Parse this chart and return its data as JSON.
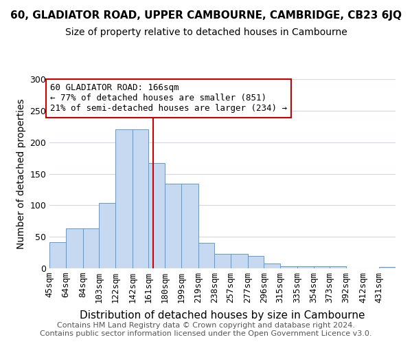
{
  "title1": "60, GLADIATOR ROAD, UPPER CAMBOURNE, CAMBRIDGE, CB23 6JQ",
  "title2": "Size of property relative to detached houses in Cambourne",
  "xlabel": "Distribution of detached houses by size in Cambourne",
  "ylabel": "Number of detached properties",
  "bin_labels": [
    "45sqm",
    "64sqm",
    "84sqm",
    "103sqm",
    "122sqm",
    "142sqm",
    "161sqm",
    "180sqm",
    "199sqm",
    "219sqm",
    "238sqm",
    "257sqm",
    "277sqm",
    "296sqm",
    "315sqm",
    "335sqm",
    "354sqm",
    "373sqm",
    "392sqm",
    "412sqm",
    "431sqm"
  ],
  "bin_edges": [
    45,
    64,
    84,
    103,
    122,
    142,
    161,
    180,
    199,
    219,
    238,
    257,
    277,
    296,
    315,
    335,
    354,
    373,
    392,
    412,
    431,
    450
  ],
  "values": [
    42,
    63,
    63,
    104,
    220,
    220,
    167,
    134,
    134,
    40,
    23,
    23,
    20,
    8,
    3,
    3,
    3,
    3,
    0,
    0,
    2
  ],
  "bar_color": "#c6d9f1",
  "bar_edgecolor": "#5b9bd5",
  "vline_x": 166,
  "vline_color": "#cc0000",
  "annotation_text": "60 GLADIATOR ROAD: 166sqm\n← 77% of detached houses are smaller (851)\n21% of semi-detached houses are larger (234) →",
  "annotation_box_color": "#ffffff",
  "annotation_box_edgecolor": "#cc0000",
  "ylim": [
    0,
    300
  ],
  "yticks": [
    0,
    50,
    100,
    150,
    200,
    250,
    300
  ],
  "footer_text": "Contains HM Land Registry data © Crown copyright and database right 2024.\nContains public sector information licensed under the Open Government Licence v3.0.",
  "bg_color": "#ffffff",
  "grid_color": "#d0d8e8",
  "title1_fontsize": 11,
  "title2_fontsize": 10,
  "xlabel_fontsize": 11,
  "ylabel_fontsize": 10,
  "tick_fontsize": 9,
  "annotation_fontsize": 9,
  "footer_fontsize": 8
}
